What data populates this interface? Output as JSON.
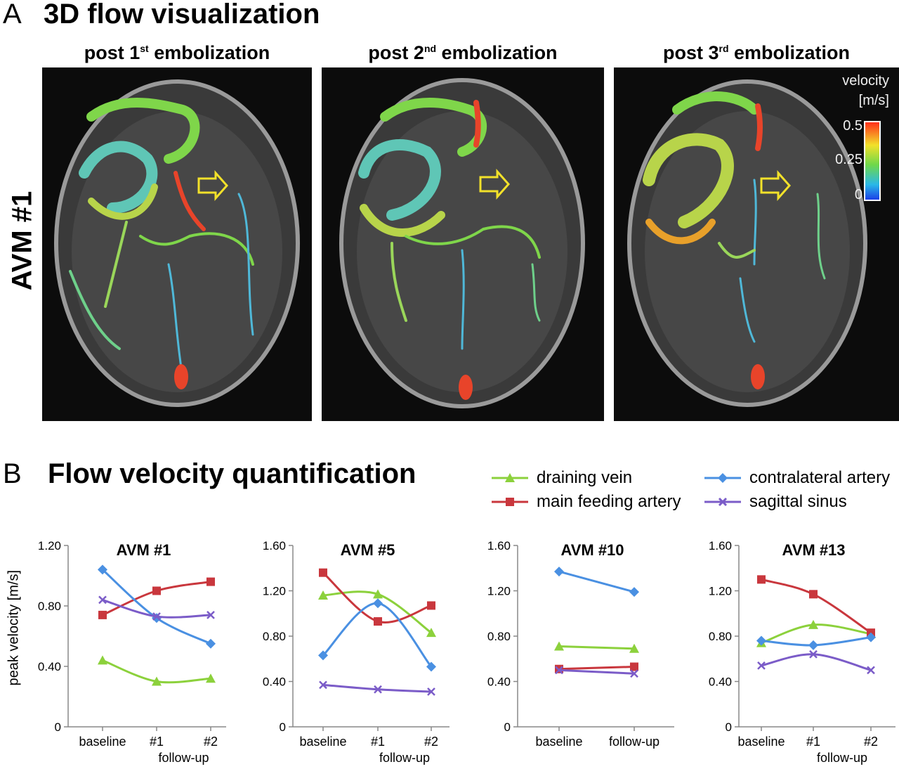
{
  "panel_a": {
    "letter": "A",
    "title": "3D flow visualization",
    "row_label": "AVM #1",
    "images": [
      {
        "pre": "post 1",
        "sup": "st",
        "post": " embolization"
      },
      {
        "pre": "post 2",
        "sup": "nd",
        "post": " embolization"
      },
      {
        "pre": "post 3",
        "sup": "rd",
        "post": " embolization"
      }
    ],
    "colorbar": {
      "title_line1": "velocity",
      "title_line2": "[m/s]",
      "ticks": [
        "0.5",
        "0.25",
        "0"
      ]
    }
  },
  "panel_b": {
    "letter": "B",
    "title": "Flow velocity quantification"
  },
  "legend": [
    {
      "name": "draining vein",
      "color": "#8cd13c",
      "marker": "triangle"
    },
    {
      "name": "main feeding artery",
      "color": "#c9373d",
      "marker": "square"
    },
    {
      "name": "contralateral artery",
      "color": "#4a90e2",
      "marker": "diamond"
    },
    {
      "name": "sagittal sinus",
      "color": "#7b5cc8",
      "marker": "x"
    }
  ],
  "ylabel": "peak velocity [m/s]",
  "chart_data": [
    {
      "type": "line",
      "title": "AVM #1",
      "categories": [
        "baseline",
        "#1",
        "#2"
      ],
      "xlabel": "follow-up",
      "ylim": [
        0,
        1.2
      ],
      "yticks": [
        "0",
        "0.40",
        "0.80",
        "1.20"
      ],
      "series": [
        {
          "name": "draining vein",
          "values": [
            0.44,
            0.3,
            0.32
          ]
        },
        {
          "name": "main feeding artery",
          "values": [
            0.74,
            0.9,
            0.96
          ]
        },
        {
          "name": "contralateral artery",
          "values": [
            1.04,
            0.72,
            0.55
          ]
        },
        {
          "name": "sagittal sinus",
          "values": [
            0.84,
            0.73,
            0.74
          ]
        }
      ]
    },
    {
      "type": "line",
      "title": "AVM #5",
      "categories": [
        "baseline",
        "#1",
        "#2"
      ],
      "xlabel": "follow-up",
      "ylim": [
        0,
        1.6
      ],
      "yticks": [
        "0",
        "0.40",
        "0.80",
        "1.20",
        "1.60"
      ],
      "series": [
        {
          "name": "draining vein",
          "values": [
            1.16,
            1.17,
            0.83
          ]
        },
        {
          "name": "main feeding artery",
          "values": [
            1.36,
            0.93,
            1.07
          ]
        },
        {
          "name": "contralateral artery",
          "values": [
            0.63,
            1.09,
            0.53
          ]
        },
        {
          "name": "sagittal sinus",
          "values": [
            0.37,
            0.33,
            0.31
          ]
        }
      ]
    },
    {
      "type": "line",
      "title": "AVM #10",
      "categories": [
        "baseline",
        "follow-up"
      ],
      "xlabel": "",
      "ylim": [
        0,
        1.6
      ],
      "yticks": [
        "0",
        "0.40",
        "0.80",
        "1.20",
        "1.60"
      ],
      "series": [
        {
          "name": "draining vein",
          "values": [
            0.71,
            0.69
          ]
        },
        {
          "name": "main feeding artery",
          "values": [
            0.51,
            0.53
          ]
        },
        {
          "name": "contralateral artery",
          "values": [
            1.37,
            1.19
          ]
        },
        {
          "name": "sagittal sinus",
          "values": [
            0.5,
            0.47
          ]
        }
      ]
    },
    {
      "type": "line",
      "title": "AVM #13",
      "categories": [
        "baseline",
        "#1",
        "#2"
      ],
      "xlabel": "follow-up",
      "ylim": [
        0,
        1.6
      ],
      "yticks": [
        "0",
        "0.40",
        "0.80",
        "1.20",
        "1.60"
      ],
      "series": [
        {
          "name": "draining vein",
          "values": [
            0.74,
            0.9,
            0.82
          ]
        },
        {
          "name": "main feeding artery",
          "values": [
            1.3,
            1.17,
            0.83
          ]
        },
        {
          "name": "contralateral artery",
          "values": [
            0.76,
            0.72,
            0.79
          ]
        },
        {
          "name": "sagittal sinus",
          "values": [
            0.54,
            0.64,
            0.5
          ]
        }
      ]
    }
  ]
}
